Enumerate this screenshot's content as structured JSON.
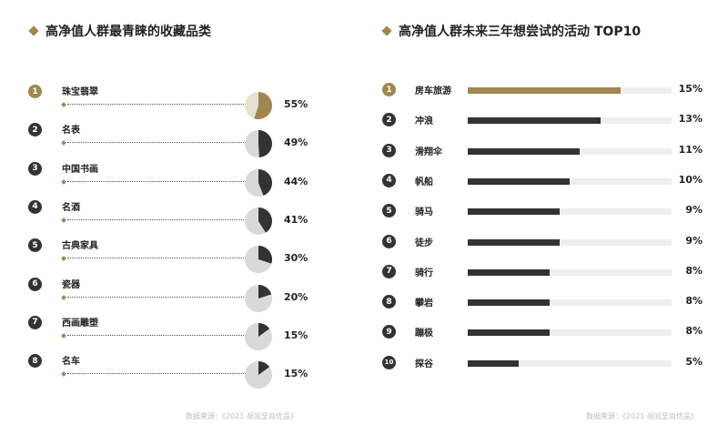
{
  "left": {
    "title": "高净值人群最青睐的收藏品类",
    "source": "数据来源：《2021 胡润至尚优品》"
  },
  "right": {
    "title": "高净值人群未来三年想尝试的活动 TOP10",
    "source": "数据来源：《2021 胡润至尚优品》"
  },
  "colors": {
    "accent": "#a08650",
    "dark": "#333333",
    "pie_bg": "#d9d9d9",
    "pie_bg_highlight": "#e8e1d2",
    "track": "#eeeeee"
  },
  "chart_data": [
    {
      "type": "pie",
      "title": "高净值人群最青睐的收藏品类",
      "categories": [
        "珠宝翡翠",
        "名表",
        "中国书画",
        "名酒",
        "古典家具",
        "瓷器",
        "西画雕塑",
        "名车"
      ],
      "ranks": [
        "1",
        "2",
        "3",
        "4",
        "5",
        "6",
        "7",
        "8"
      ],
      "values": [
        55,
        49,
        44,
        41,
        30,
        20,
        15,
        15
      ],
      "labels": [
        "55%",
        "49%",
        "44%",
        "41%",
        "30%",
        "20%",
        "15%",
        "15%"
      ],
      "unit": "%"
    },
    {
      "type": "bar",
      "title": "高净值人群未来三年想尝试的活动 TOP10",
      "categories": [
        "房车旅游",
        "冲浪",
        "滑翔伞",
        "帆船",
        "骑马",
        "徒步",
        "骑行",
        "攀岩",
        "蹦极",
        "探谷"
      ],
      "ranks": [
        "1",
        "2",
        "3",
        "4",
        "5",
        "6",
        "7",
        "8",
        "9",
        "10"
      ],
      "values": [
        15,
        13,
        11,
        10,
        9,
        9,
        8,
        8,
        8,
        5
      ],
      "labels": [
        "15%",
        "13%",
        "11%",
        "10%",
        "9%",
        "9%",
        "8%",
        "8%",
        "8%",
        "5%"
      ],
      "unit": "%"
    }
  ]
}
